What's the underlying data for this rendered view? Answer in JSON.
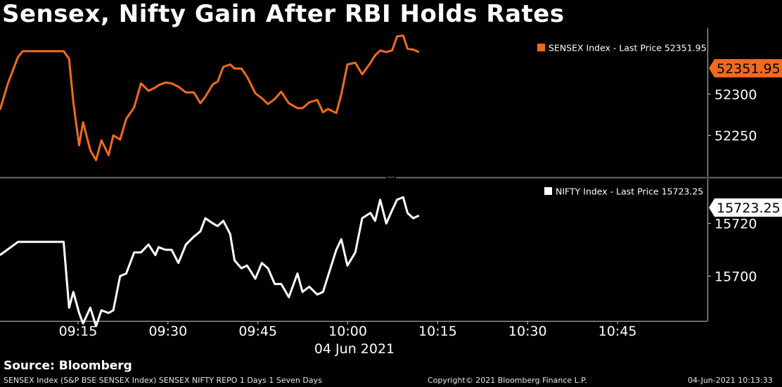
{
  "title": "Sensex, Nifty Gain After RBI Holds Rates",
  "source": "Source: Bloomberg",
  "footer": {
    "left": "SENSEX Index (S&P BSE SENSEX Index) SENSEX NIFTY REPO 1 Days 1 Seven Days",
    "center": "Copyright© 2021 Bloomberg Finance L.P.",
    "right": "04-Jun-2021 10:13:33"
  },
  "colors": {
    "sensex": "#f26a1b",
    "nifty": "#ffffff",
    "axis": "#c8c8c8",
    "divider": "#6a6a6a"
  },
  "chart_data": [
    {
      "type": "line",
      "name": "SENSEX",
      "legend": "SENSEX Index  - Last Price 52351.95",
      "last_price_label": "52351.95",
      "ylim": [
        52200,
        52380
      ],
      "yticks": [
        52250,
        52300
      ],
      "ytick_labels": [
        "52250",
        "52300"
      ],
      "x": [
        9.033,
        9.055,
        9.083,
        9.096,
        9.11,
        9.141,
        9.21,
        9.225,
        9.237,
        9.253,
        9.264,
        9.284,
        9.3,
        9.315,
        9.335,
        9.348,
        9.367,
        9.384,
        9.406,
        9.425,
        9.446,
        9.465,
        9.474,
        9.493,
        9.51,
        9.529,
        9.55,
        9.572,
        9.59,
        9.604,
        9.625,
        9.638,
        9.654,
        9.673,
        9.685,
        9.704,
        9.72,
        9.743,
        9.761,
        9.778,
        9.797,
        9.815,
        9.836,
        9.86,
        9.874,
        9.893,
        9.915,
        9.931,
        9.945,
        9.968,
        9.982,
        9.999,
        10.021,
        10.04,
        10.063,
        10.076,
        10.09,
        10.107,
        10.123,
        10.137,
        10.154,
        10.166,
        10.182,
        10.198
      ],
      "values": [
        52281,
        52313,
        52345,
        52352,
        52352,
        52352,
        52352,
        52343,
        52290,
        52238,
        52266,
        52232,
        52220,
        52244,
        52226,
        52250,
        52245,
        52270,
        52284,
        52313,
        52304,
        52308,
        52311,
        52314,
        52313,
        52309,
        52302,
        52302,
        52289,
        52297,
        52312,
        52315,
        52333,
        52336,
        52331,
        52331,
        52321,
        52301,
        52295,
        52288,
        52294,
        52303,
        52289,
        52283,
        52283,
        52290,
        52293,
        52278,
        52282,
        52277,
        52300,
        52336,
        52338,
        52324,
        52338,
        52347,
        52353,
        52351,
        52353,
        52370,
        52371,
        52355,
        52354,
        52351
      ],
      "series_color": "#f26a1b"
    },
    {
      "type": "line",
      "name": "NIFTY",
      "legend": "NIFTY Index  - Last Price 15723.25",
      "last_price_label": "15723.25",
      "ylim": [
        15683,
        15737
      ],
      "yticks": [
        15700,
        15720
      ],
      "ytick_labels": [
        "15700",
        "15720"
      ],
      "x": [
        9.033,
        9.083,
        9.11,
        9.141,
        9.21,
        9.225,
        9.237,
        9.253,
        9.264,
        9.284,
        9.3,
        9.315,
        9.335,
        9.348,
        9.367,
        9.384,
        9.406,
        9.425,
        9.446,
        9.465,
        9.474,
        9.493,
        9.51,
        9.529,
        9.55,
        9.572,
        9.59,
        9.604,
        9.625,
        9.638,
        9.654,
        9.673,
        9.685,
        9.704,
        9.72,
        9.743,
        9.761,
        9.778,
        9.797,
        9.815,
        9.836,
        9.86,
        9.874,
        9.893,
        9.915,
        9.931,
        9.945,
        9.968,
        9.982,
        9.999,
        10.021,
        10.04,
        10.063,
        10.076,
        10.09,
        10.107,
        10.123,
        10.137,
        10.154,
        10.166,
        10.182,
        10.198
      ],
      "values": [
        15708,
        15713,
        15713,
        15713,
        15713,
        15688,
        15694,
        15686,
        15682,
        15688,
        15681,
        15687,
        15686,
        15687,
        15700,
        15701,
        15709,
        15709,
        15712,
        15708,
        15711,
        15710,
        15710,
        15705,
        15712,
        15715,
        15717,
        15722,
        15720,
        15719,
        15721,
        15716,
        15706,
        15703,
        15704,
        15699,
        15705,
        15703,
        15697,
        15697,
        15692,
        15701,
        15694,
        15696,
        15693,
        15694,
        15700,
        15710,
        15714,
        15704,
        15709,
        15722,
        15724,
        15721,
        15729,
        15720,
        15725,
        15729,
        15730,
        15724,
        15722,
        15723
      ],
      "series_color": "#ffffff"
    }
  ],
  "x_axis": {
    "ticks": [
      9.25,
      9.5,
      9.75,
      10.0,
      10.25,
      10.5,
      10.75
    ],
    "tick_labels": [
      "09:15",
      "09:30",
      "09:45",
      "10:00",
      "10:15",
      "10:30",
      "10:45"
    ],
    "xlim": [
      9.033,
      11.0
    ],
    "date_label": "04 Jun 2021"
  }
}
